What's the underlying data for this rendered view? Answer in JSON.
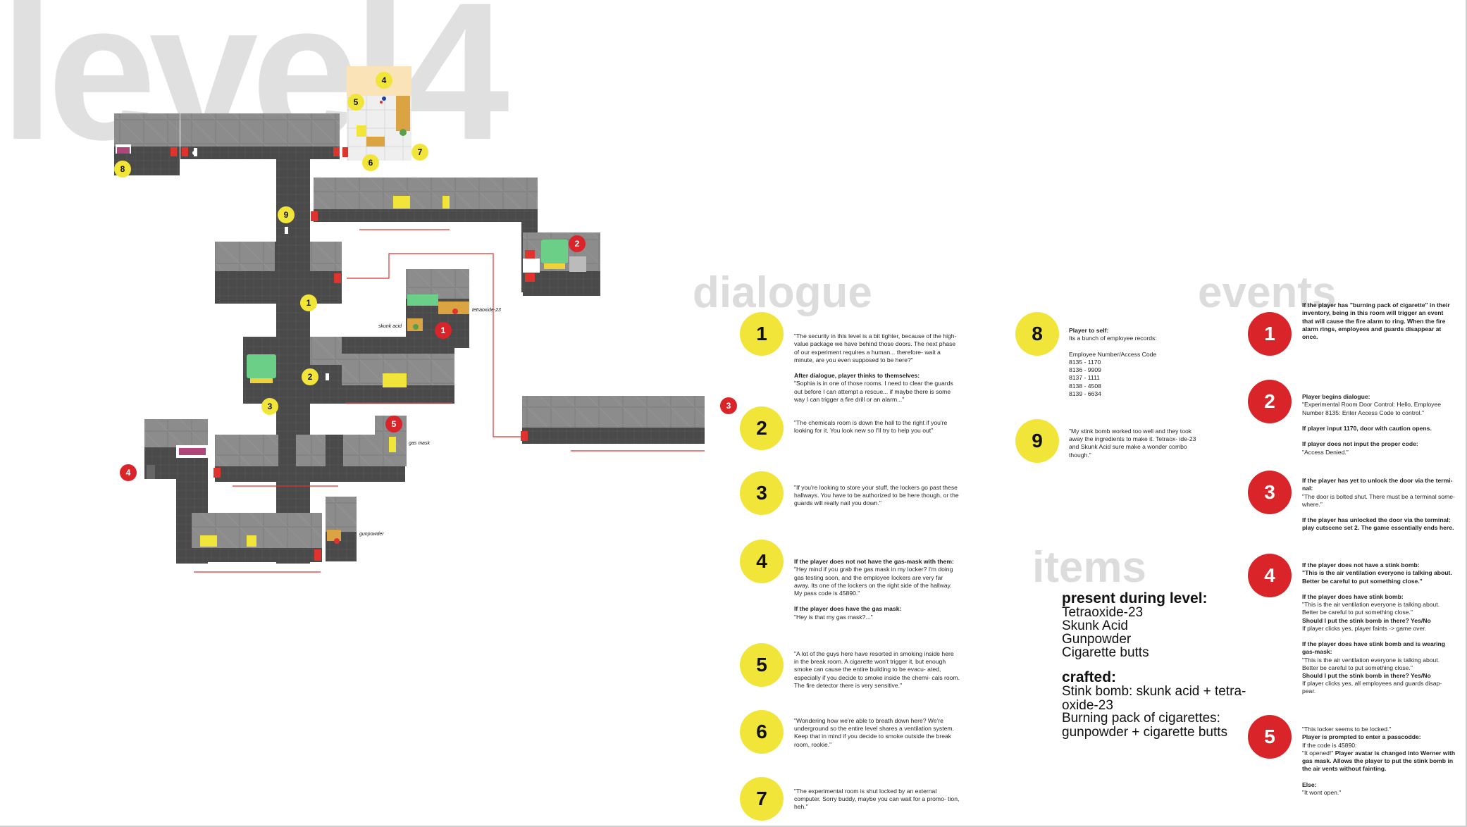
{
  "title": "level4",
  "sections": {
    "dialogue": "dialogue",
    "events": "events",
    "items": "items"
  },
  "map_labels": {
    "skunk_acid": "skunk acid",
    "tetraoxide": "tetraoxide-23",
    "gas_mask": "gas mask",
    "gunpowder": "gunpowder"
  },
  "map_markers": {
    "y1": "1",
    "y2": "2",
    "y3": "3",
    "y4": "4",
    "y5": "5",
    "y6": "6",
    "y7": "7",
    "y8": "8",
    "y9": "9",
    "r1": "1",
    "r2": "2",
    "r3": "3",
    "r4": "4",
    "r5": "5"
  },
  "dialogue": [
    {
      "num": "1",
      "text": "\"The security in this level is a bit tighter, because of the high-value package we have behind those doors. The next phase of our experiment requires a human... therefore- wait a minute, are you even supposed to be here?\"",
      "bold2": "After dialogue, player thinks to themselves:",
      "text2": "\"Sophia is in one of those rooms. I need to clear the guards out before I can attempt a rescue... if maybe there is some way I can trigger a fire drill or an alarm...\""
    },
    {
      "num": "2",
      "text": "\"The chemicals room is down the hall to the right if you're looking for it. You look new so I'll try to help you out\""
    },
    {
      "num": "3",
      "text": "\"If you're looking to store your stuff, the lockers go past these hallways. You have to be authorized to be here though, or the guards will really nail you down.\""
    },
    {
      "num": "4",
      "bold1": "If the player does not not have the gas-mask with them:",
      "text": "\"Hey mind if you grab the gas mask in my locker? I'm doing gas testing soon, and the employee lockers are very far away. Its one of the lockers on the right side of the hallway. My pass code is 45890.\"",
      "bold2": "If the player does have the gas mask:",
      "text2": "\"Hey is that my gas mask?...\""
    },
    {
      "num": "5",
      "text": "\"A lot of the guys here have resorted in smoking inside here in the break room. A cigarette won't trigger it, but enough smoke can cause the entire building to be evacu- ated, especially if you decide to smoke inside the chemi- cals room. The fire detector there is very sensitive.\""
    },
    {
      "num": "6",
      "text": "\"Wondering how we're able to breath down here? We're underground so the entire level shares a ventilation system. Keep that in mind if you decide to smoke outside the break room, rookie.\""
    },
    {
      "num": "7",
      "text": "\"The experimental room is shut locked by an external computer. Sorry buddy, maybe you can wait for a promo- tion, heh.\""
    },
    {
      "num": "8",
      "bold1": "Player to self:",
      "text": "Its a bunch of employee records:\n\nEmployee Number/Access Code\n8135 - 1170\n8136 - 9909\n8137 - 1111\n8138 - 4508\n8139 - 6634"
    },
    {
      "num": "9",
      "text": "\"My stink bomb worked too well and they took away the ingredients to make it. Tetraox- ide-23 and Skunk Acid sure make a wonder combo though.\""
    }
  ],
  "events": [
    {
      "num": "1",
      "bold1": "If the player has \"burning pack of cigarette\" in their inventory, being in this room will trigger an event that will cause the fire alarm to ring. When the fire alarm rings, employees and guards disappear at once."
    },
    {
      "num": "2",
      "bold1": "Player begins dialogue:",
      "text": "\"Experimental Room Door Control: Hello, Employee Number 8135: Enter Access Code to control.\"",
      "bold2": "If player input 1170, door with caution opens.",
      "bold3": "If player does not input the proper code:",
      "text3": "\"Access Denied.\""
    },
    {
      "num": "3",
      "bold1": "If the player has yet to unlock the door via the termi- nal:",
      "text": "\"The door is bolted shut. There must be a terminal some- where.\"",
      "bold2": "If the player has unlocked the door via the terminal: play cutscene set 2. The game essentially ends here."
    },
    {
      "num": "4",
      "bold1": "If the player does not have a stink bomb:\n\"This is the air ventilation everyone is talking about. Better be careful to put something close.\"",
      "bold2": "If the player does have stink bomb:",
      "text2": "\"This is the air ventilation everyone is talking about. Better be careful to put something close.\"",
      "bold2b": "Should I put the stink bomb in there? Yes/No",
      "text2b": "If player clicks yes, player faints -> game over.",
      "bold3": "If the player does have stink bomb and is wearing gas-mask:",
      "text3": "\"This is the air ventilation everyone is talking about. Better be careful to put something close.\"",
      "bold3b": "Should I put the stink bomb in there? Yes/No",
      "text3b": "If player clicks yes, all employees and guards disap- pear."
    },
    {
      "num": "5",
      "text": "\"This locker seems to be locked.\"",
      "bold1": "Player is prompted to enter a passcodde:",
      "text1b": "If the code is 45890:",
      "text2": "\"It opened!\"",
      "bold2": "Player avatar is changed into Werner with gas mask. Allows the player to put the stink bomb in the air vents without fainting.",
      "bold3": "Else:",
      "text3": "\"It wont open.\""
    }
  ],
  "items": {
    "present_title": "present during level:",
    "present": [
      "Tetraoxide-23",
      "Skunk Acid",
      "Gunpowder",
      "Cigarette butts"
    ],
    "crafted_title": "crafted:",
    "crafted": [
      "Stink bomb: skunk acid + tetra- oxide-23",
      "Burning pack of cigarettes: gunpowder + cigarette butts"
    ]
  },
  "colors": {
    "yellow": "#f1e53a",
    "red": "#d9252a",
    "wall": "#8e8e8e",
    "floor": "#4b4b4b",
    "door": "#e0332e",
    "title_gray": "#e0e0e0"
  }
}
